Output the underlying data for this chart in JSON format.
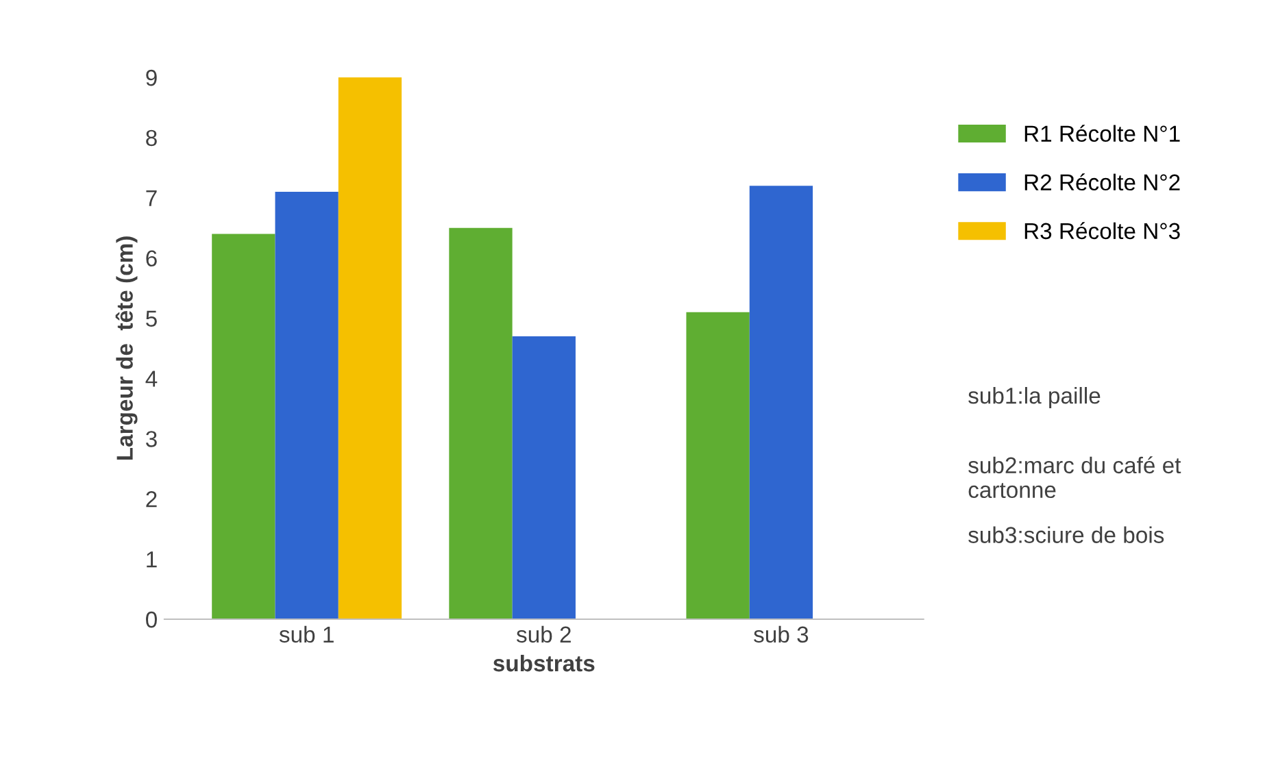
{
  "chart_data": {
    "type": "bar",
    "xlabel": "substrats",
    "ylabel": "Largeur de  tête (cm)",
    "categories": [
      "sub 1",
      "sub 2",
      "sub 3"
    ],
    "series": [
      {
        "name": "R1 Récolte N°1",
        "color": "#5fae32",
        "values": [
          6.4,
          6.5,
          5.1
        ]
      },
      {
        "name": "R2 Récolte N°2",
        "color": "#2f66d0",
        "values": [
          7.1,
          4.7,
          7.2
        ]
      },
      {
        "name": "R3 Récolte N°3",
        "color": "#f5c000",
        "values": [
          9.0,
          0,
          0
        ]
      }
    ],
    "ylim": [
      0,
      9
    ],
    "yticks": [
      0,
      1,
      2,
      3,
      4,
      5,
      6,
      7,
      8,
      9
    ],
    "grid": false,
    "legend": "right",
    "annotations": [
      "sub1:la paille",
      "sub2:marc du café et cartonne",
      "sub3:sciure de bois"
    ]
  }
}
